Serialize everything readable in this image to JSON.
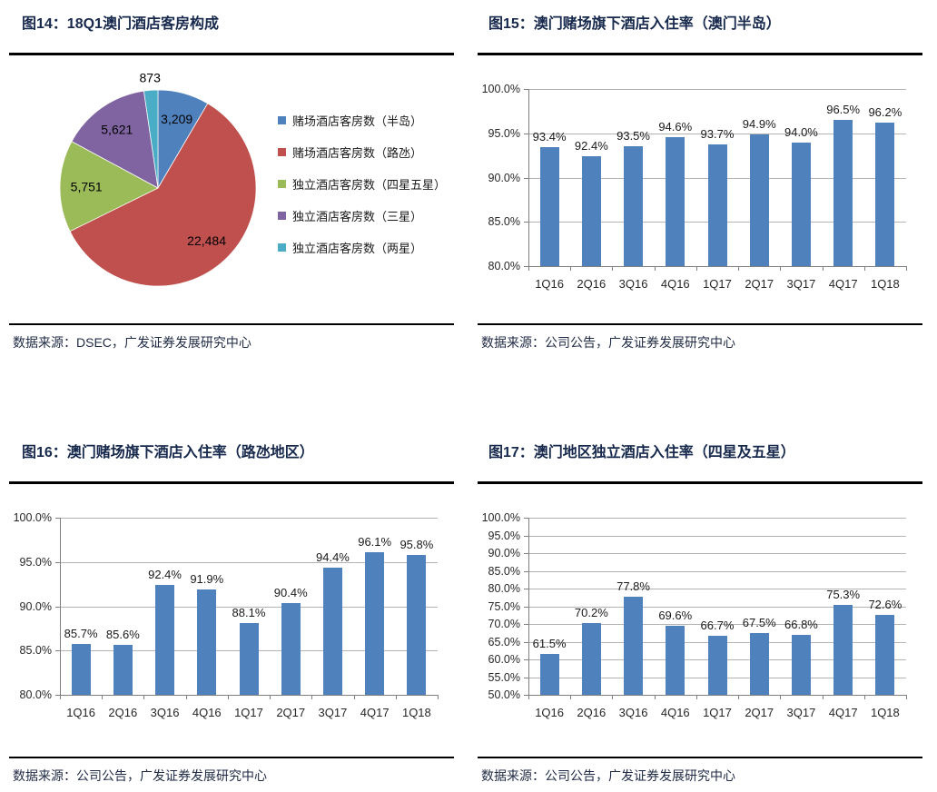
{
  "colors": {
    "bar_blue": "#4F81BD",
    "title_navy": "#17294D",
    "source_navy": "#1F2A44",
    "gridline_gray": "#B3B3B3",
    "axis_gray": "#808080"
  },
  "chart_data": [
    {
      "type": "pie",
      "title": "图14：18Q1澳门酒店客房构成",
      "source": "数据来源：DSEC，广发证券发展研究中心",
      "start_angle_deg": 0,
      "direction": "clockwise",
      "legend_position": "right",
      "slices": [
        {
          "label": "赌场酒店客房数（半岛）",
          "value": 3209,
          "display": "3,209",
          "color": "#4F81BD",
          "label_outside": false
        },
        {
          "label": "赌场酒店客房数（路氹）",
          "value": 22484,
          "display": "22,484",
          "color": "#C0504D",
          "label_outside": false
        },
        {
          "label": "独立酒店客房数（四星五星）",
          "value": 5751,
          "display": "5,751",
          "color": "#9BBB59",
          "label_outside": false
        },
        {
          "label": "独立酒店客房数（三星）",
          "value": 5621,
          "display": "5,621",
          "color": "#8064A2",
          "label_outside": false
        },
        {
          "label": "独立酒店客房数（两星）",
          "value": 873,
          "display": "873",
          "color": "#4BACC6",
          "label_outside": true
        }
      ]
    },
    {
      "type": "bar",
      "title": "图15：澳门赌场旗下酒店入住率（澳门半岛）",
      "source": "数据来源：公司公告，广发证券发展研究中心",
      "categories": [
        "1Q16",
        "2Q16",
        "3Q16",
        "4Q16",
        "1Q17",
        "2Q17",
        "3Q17",
        "4Q17",
        "1Q18"
      ],
      "values": [
        93.4,
        92.4,
        93.5,
        94.6,
        93.7,
        94.9,
        94.0,
        96.5,
        96.2
      ],
      "data_labels": [
        "93.4%",
        "92.4%",
        "93.5%",
        "94.6%",
        "93.7%",
        "94.9%",
        "94.0%",
        "96.5%",
        "96.2%"
      ],
      "ylim": [
        80,
        100
      ],
      "ytick_step": 5,
      "ytick_labels": [
        "80.0%",
        "85.0%",
        "90.0%",
        "95.0%",
        "100.0%"
      ],
      "bar_color": "#4F81BD",
      "grid": true,
      "legend_position": "none",
      "xlabel": "",
      "ylabel": ""
    },
    {
      "type": "bar",
      "title": "图16：澳门赌场旗下酒店入住率（路氹地区）",
      "source": "数据来源：公司公告，广发证券发展研究中心",
      "categories": [
        "1Q16",
        "2Q16",
        "3Q16",
        "4Q16",
        "1Q17",
        "2Q17",
        "3Q17",
        "4Q17",
        "1Q18"
      ],
      "values": [
        85.7,
        85.6,
        92.4,
        91.9,
        88.1,
        90.4,
        94.4,
        96.1,
        95.8
      ],
      "data_labels": [
        "85.7%",
        "85.6%",
        "92.4%",
        "91.9%",
        "88.1%",
        "90.4%",
        "94.4%",
        "96.1%",
        "95.8%"
      ],
      "ylim": [
        80,
        100
      ],
      "ytick_step": 5,
      "ytick_labels": [
        "80.0%",
        "85.0%",
        "90.0%",
        "95.0%",
        "100.0%"
      ],
      "bar_color": "#4F81BD",
      "grid": true,
      "legend_position": "none",
      "xlabel": "",
      "ylabel": ""
    },
    {
      "type": "bar",
      "title": "图17：澳门地区独立酒店入住率（四星及五星）",
      "source": "数据来源：公司公告，广发证券发展研究中心",
      "categories": [
        "1Q16",
        "2Q16",
        "3Q16",
        "4Q16",
        "1Q17",
        "2Q17",
        "3Q17",
        "4Q17",
        "1Q18"
      ],
      "values": [
        61.5,
        70.2,
        77.8,
        69.6,
        66.7,
        67.5,
        66.8,
        75.3,
        72.6
      ],
      "data_labels": [
        "61.5%",
        "70.2%",
        "77.8%",
        "69.6%",
        "66.7%",
        "67.5%",
        "66.8%",
        "75.3%",
        "72.6%"
      ],
      "ylim": [
        50,
        100
      ],
      "ytick_step": 5,
      "ytick_labels": [
        "50.0%",
        "55.0%",
        "60.0%",
        "65.0%",
        "70.0%",
        "75.0%",
        "80.0%",
        "85.0%",
        "90.0%",
        "95.0%",
        "100.0%"
      ],
      "bar_color": "#4F81BD",
      "grid": true,
      "legend_position": "none",
      "xlabel": "",
      "ylabel": ""
    }
  ]
}
